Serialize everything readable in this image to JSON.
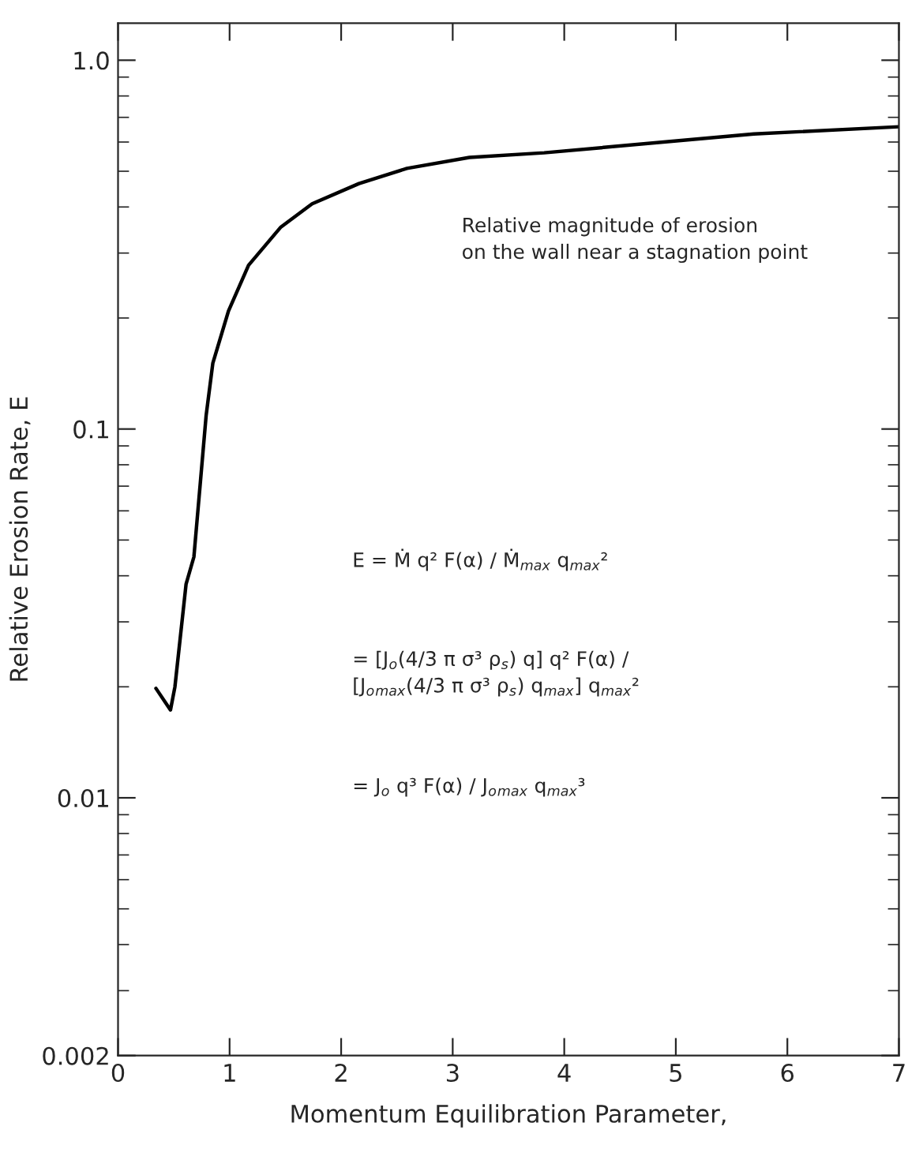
{
  "chart_data": {
    "type": "line",
    "xlabel": "Momentum Equilibration Parameter,",
    "ylabel": "Relative Erosion Rate, E",
    "series": [
      {
        "color": "#000000",
        "x": [
          0.34,
          0.47,
          0.51,
          0.61,
          0.68,
          0.79,
          0.85,
          0.99,
          1.17,
          1.46,
          1.74,
          2.16,
          2.59,
          3.15,
          3.82,
          5.7,
          7.0
        ],
        "values": [
          0.0198,
          0.0173,
          0.02,
          0.038,
          0.045,
          0.109,
          0.151,
          0.209,
          0.278,
          0.353,
          0.408,
          0.463,
          0.509,
          0.545,
          0.561,
          0.631,
          0.66
        ]
      }
    ],
    "log": "y",
    "xlim": [
      0,
      7
    ],
    "ylim": [
      0.002,
      1.26
    ],
    "xticks": [
      0,
      1,
      2,
      3,
      4,
      5,
      6,
      7
    ],
    "yticks": [
      {
        "value": 0.002,
        "label": "0.002"
      },
      {
        "value": 0.01,
        "label": "0.01"
      },
      {
        "value": 0.1,
        "label": "0.1"
      },
      {
        "value": 1,
        "label": "1.0"
      }
    ],
    "grid": false,
    "legend": false,
    "marker": "none",
    "line_style": "solid",
    "annotations": [
      "Relative magnitude of erosion\non the wall near a stagnation point",
      "E = Ṁ q² F(α) / Ṁ$_{max}$ q$_{max}$²",
      "= [J$_{o}$(4/3 π σ³ ρ$_{s}$) q] q² F(α) /\n[J$_{o}$$_{max}$(4/3 π σ³ ρ$_{s}$) q$_{max}$] q$_{max}$²",
      "= J$_{o}$ q³ F(α) / J$_{o}$$_{max}$ q$_{max}$³"
    ]
  }
}
